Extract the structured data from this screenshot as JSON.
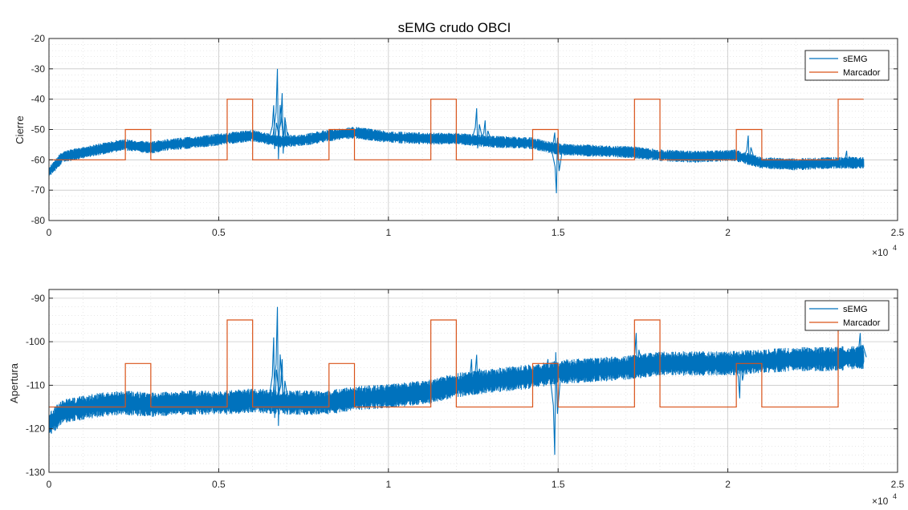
{
  "chart_data": [
    {
      "type": "line",
      "title": "sEMG crudo OBCI",
      "xlabel": "",
      "ylabel": "Cierre",
      "xlim": [
        0,
        25000
      ],
      "ylim": [
        -80,
        -20
      ],
      "x_ticks": [
        "0",
        "0.5",
        "1",
        "1.5",
        "2",
        "2.5"
      ],
      "x_tick_values": [
        0,
        5000,
        10000,
        15000,
        20000,
        25000
      ],
      "x_exponent_base": "×10",
      "x_exponent_power": "4",
      "y_ticks": [
        "-80",
        "-70",
        "-60",
        "-50",
        "-40",
        "-30",
        "-20"
      ],
      "y_tick_values": [
        -80,
        -70,
        -60,
        -50,
        -40,
        -30,
        -20
      ],
      "grid": true,
      "minor_grid": true,
      "legend": "top-right",
      "series": [
        {
          "name": "sEMG",
          "color": "#0072BD",
          "noise_amplitude": 1.4,
          "baseline": [
            [
              0,
              -64
            ],
            [
              400,
              -59
            ],
            [
              1500,
              -56.5
            ],
            [
              2200,
              -55
            ],
            [
              3000,
              -56
            ],
            [
              3500,
              -55
            ],
            [
              4500,
              -54
            ],
            [
              5200,
              -53
            ],
            [
              6000,
              -52
            ],
            [
              6800,
              -54
            ],
            [
              7500,
              -53.5
            ],
            [
              8200,
              -52
            ],
            [
              9000,
              -51
            ],
            [
              10000,
              -52.5
            ],
            [
              11200,
              -53
            ],
            [
              12000,
              -53
            ],
            [
              13000,
              -54
            ],
            [
              14200,
              -54.5
            ],
            [
              15000,
              -56.5
            ],
            [
              16000,
              -57
            ],
            [
              17200,
              -57.5
            ],
            [
              18000,
              -58.5
            ],
            [
              19000,
              -59
            ],
            [
              20200,
              -58.5
            ],
            [
              21000,
              -61
            ],
            [
              22000,
              -61.5
            ],
            [
              23000,
              -61
            ],
            [
              24000,
              -61
            ]
          ],
          "spikes": [
            [
              6730,
              -30
            ],
            [
              6870,
              -38
            ],
            [
              6620,
              -42
            ],
            [
              6950,
              -48
            ],
            [
              12600,
              -43
            ],
            [
              12850,
              -47
            ],
            [
              13300,
              -54
            ],
            [
              14900,
              -51
            ],
            [
              14950,
              -71
            ],
            [
              20600,
              -52
            ],
            [
              23500,
              -57
            ]
          ]
        },
        {
          "name": "Marcador",
          "color": "#D95319",
          "step_points": [
            [
              0,
              -60
            ],
            [
              2250,
              -60
            ],
            [
              2250,
              -50
            ],
            [
              3000,
              -50
            ],
            [
              3000,
              -60
            ],
            [
              5250,
              -60
            ],
            [
              5250,
              -40
            ],
            [
              6000,
              -40
            ],
            [
              6000,
              -60
            ],
            [
              8250,
              -60
            ],
            [
              8250,
              -50
            ],
            [
              9000,
              -50
            ],
            [
              9000,
              -60
            ],
            [
              11250,
              -60
            ],
            [
              11250,
              -40
            ],
            [
              12000,
              -40
            ],
            [
              12000,
              -60
            ],
            [
              14250,
              -60
            ],
            [
              14250,
              -50
            ],
            [
              15000,
              -50
            ],
            [
              15000,
              -60
            ],
            [
              17250,
              -60
            ],
            [
              17250,
              -40
            ],
            [
              18000,
              -40
            ],
            [
              18000,
              -60
            ],
            [
              20250,
              -60
            ],
            [
              20250,
              -50
            ],
            [
              21000,
              -50
            ],
            [
              21000,
              -60
            ],
            [
              23250,
              -60
            ],
            [
              23250,
              -40
            ],
            [
              24000,
              -40
            ]
          ]
        }
      ]
    },
    {
      "type": "line",
      "title": "",
      "xlabel": "",
      "ylabel": "Apertura",
      "xlim": [
        0,
        25000
      ],
      "ylim": [
        -130,
        -88
      ],
      "x_ticks": [
        "0",
        "0.5",
        "1",
        "1.5",
        "2",
        "2.5"
      ],
      "x_tick_values": [
        0,
        5000,
        10000,
        15000,
        20000,
        25000
      ],
      "x_exponent_base": "×10",
      "x_exponent_power": "4",
      "y_ticks": [
        "-130",
        "-120",
        "-110",
        "-100",
        "-90"
      ],
      "y_tick_values": [
        -130,
        -120,
        -110,
        -100,
        -90
      ],
      "grid": true,
      "minor_grid": true,
      "legend": "top-right",
      "series": [
        {
          "name": "sEMG",
          "color": "#0072BD",
          "noise_amplitude": 2.0,
          "baseline": [
            [
              0,
              -119
            ],
            [
              400,
              -116
            ],
            [
              1500,
              -114.5
            ],
            [
              2200,
              -114
            ],
            [
              3000,
              -114.5
            ],
            [
              4000,
              -114
            ],
            [
              5200,
              -114
            ],
            [
              6000,
              -113.5
            ],
            [
              7000,
              -114
            ],
            [
              8200,
              -114
            ],
            [
              9000,
              -113
            ],
            [
              10000,
              -112.5
            ],
            [
              11200,
              -111.5
            ],
            [
              12000,
              -110
            ],
            [
              13000,
              -109
            ],
            [
              14200,
              -108
            ],
            [
              15000,
              -107
            ],
            [
              16000,
              -106.5
            ],
            [
              17000,
              -106
            ],
            [
              18000,
              -105
            ],
            [
              19000,
              -105
            ],
            [
              20000,
              -105
            ],
            [
              21000,
              -104.5
            ],
            [
              22000,
              -104
            ],
            [
              23000,
              -104
            ],
            [
              24000,
              -103.5
            ]
          ],
          "spikes": [
            [
              6730,
              -92
            ],
            [
              6620,
              -99
            ],
            [
              6870,
              -104
            ],
            [
              12600,
              -103
            ],
            [
              12450,
              -104
            ],
            [
              13000,
              -108
            ],
            [
              14700,
              -104
            ],
            [
              14900,
              -126
            ],
            [
              17300,
              -98
            ],
            [
              20350,
              -113
            ],
            [
              20600,
              -102
            ],
            [
              23900,
              -98
            ]
          ]
        },
        {
          "name": "Marcador",
          "color": "#D95319",
          "step_points": [
            [
              0,
              -115
            ],
            [
              2250,
              -115
            ],
            [
              2250,
              -105
            ],
            [
              3000,
              -105
            ],
            [
              3000,
              -115
            ],
            [
              5250,
              -115
            ],
            [
              5250,
              -95
            ],
            [
              6000,
              -95
            ],
            [
              6000,
              -115
            ],
            [
              8250,
              -115
            ],
            [
              8250,
              -105
            ],
            [
              9000,
              -105
            ],
            [
              9000,
              -115
            ],
            [
              11250,
              -115
            ],
            [
              11250,
              -95
            ],
            [
              12000,
              -95
            ],
            [
              12000,
              -115
            ],
            [
              14250,
              -115
            ],
            [
              14250,
              -105
            ],
            [
              15000,
              -105
            ],
            [
              15000,
              -115
            ],
            [
              17250,
              -115
            ],
            [
              17250,
              -95
            ],
            [
              18000,
              -95
            ],
            [
              18000,
              -115
            ],
            [
              20250,
              -115
            ],
            [
              20250,
              -105
            ],
            [
              21000,
              -105
            ],
            [
              21000,
              -115
            ],
            [
              23250,
              -115
            ],
            [
              23250,
              -95
            ],
            [
              24000,
              -95
            ]
          ]
        }
      ]
    }
  ]
}
